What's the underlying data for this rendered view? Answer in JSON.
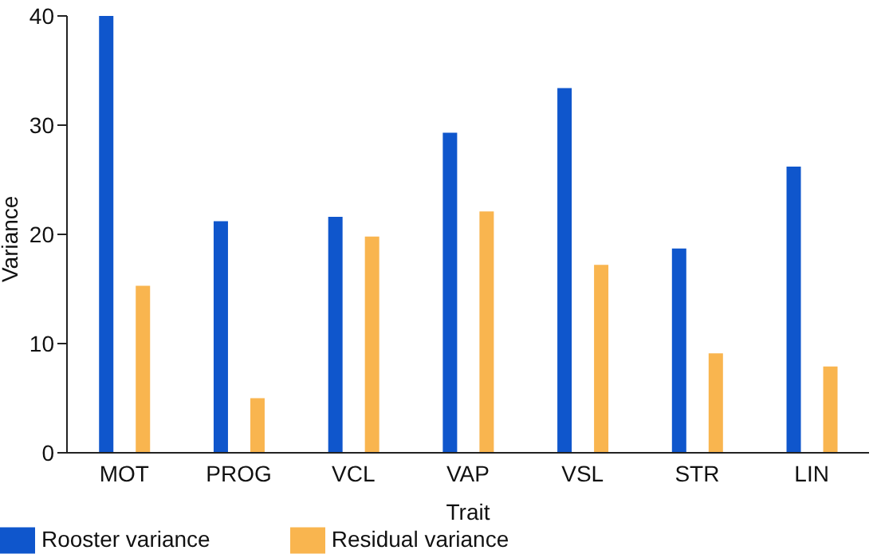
{
  "chart_data": {
    "type": "bar",
    "xlabel": "Trait",
    "ylabel": "Variance",
    "categories": [
      "MOT",
      "PROG",
      "VCL",
      "VAP",
      "VSL",
      "STR",
      "LIN"
    ],
    "series": [
      {
        "name": "Rooster variance",
        "color": "#0f56cc",
        "values": [
          40,
          21.2,
          21.6,
          29.3,
          33.4,
          18.7,
          26.2
        ]
      },
      {
        "name": "Residual variance",
        "color": "#f9b54f",
        "values": [
          15.3,
          5.0,
          19.8,
          22.1,
          17.2,
          9.1,
          7.9
        ]
      }
    ],
    "ylim": [
      0,
      40
    ],
    "yticks": [
      0,
      10,
      20,
      30,
      40
    ],
    "grid": false,
    "legend": "bottom left"
  }
}
